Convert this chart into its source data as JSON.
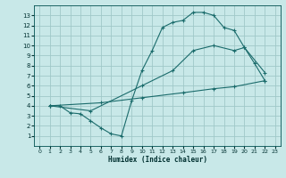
{
  "background_color": "#c8e8e8",
  "grid_color": "#a0c8c8",
  "line_color": "#1a6b6b",
  "xlabel": "Humidex (Indice chaleur)",
  "xlim": [
    -0.5,
    23.5
  ],
  "ylim": [
    0,
    14
  ],
  "xticks": [
    0,
    1,
    2,
    3,
    4,
    5,
    6,
    7,
    8,
    9,
    10,
    11,
    12,
    13,
    14,
    15,
    16,
    17,
    18,
    19,
    20,
    21,
    22,
    23
  ],
  "yticks": [
    1,
    2,
    3,
    4,
    5,
    6,
    7,
    8,
    9,
    10,
    11,
    12,
    13
  ],
  "line1_x": [
    1,
    2,
    3,
    4,
    5,
    6,
    7,
    8,
    9,
    10,
    11,
    12,
    13,
    14,
    15,
    16,
    17,
    18,
    19,
    20,
    21,
    22
  ],
  "line1_y": [
    4.0,
    4.0,
    3.3,
    3.2,
    2.5,
    1.8,
    1.2,
    1.0,
    4.5,
    7.5,
    9.5,
    11.8,
    12.3,
    12.5,
    13.3,
    13.3,
    13.0,
    11.8,
    11.5,
    9.8,
    8.2,
    6.5
  ],
  "line2_x": [
    1,
    5,
    10,
    13,
    15,
    17,
    19,
    20,
    22
  ],
  "line2_y": [
    4.0,
    3.5,
    6.0,
    7.5,
    9.5,
    10.0,
    9.5,
    9.8,
    7.3
  ],
  "line3_x": [
    1,
    6,
    10,
    14,
    17,
    19,
    22
  ],
  "line3_y": [
    4.0,
    4.3,
    4.8,
    5.3,
    5.7,
    5.9,
    6.5
  ]
}
